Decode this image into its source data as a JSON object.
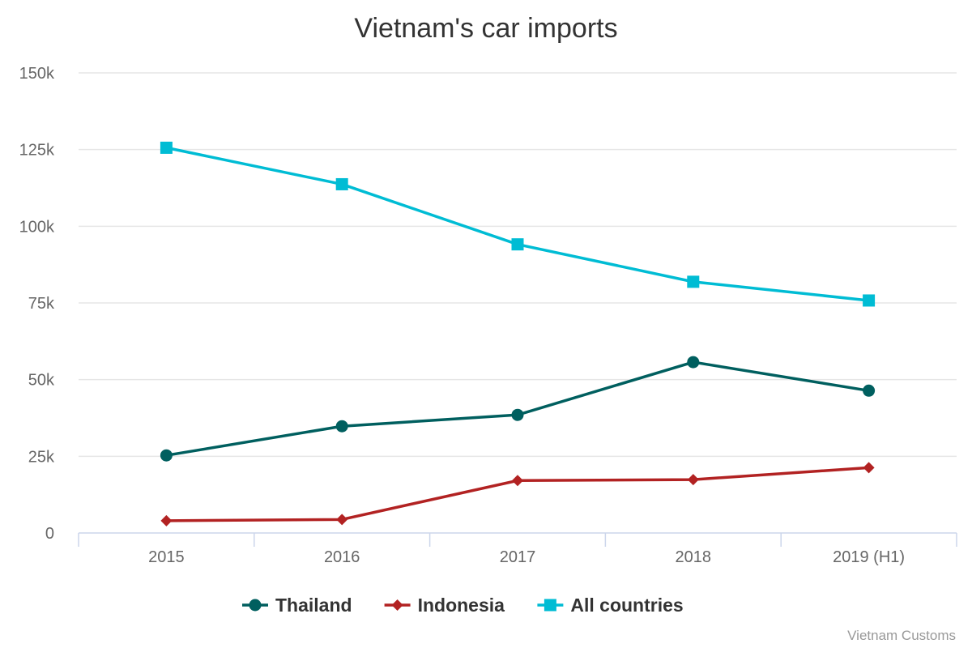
{
  "chart_data": {
    "type": "line",
    "title": "Vietnam's car imports",
    "xlabel": "",
    "ylabel": "",
    "categories": [
      "2015",
      "2016",
      "2017",
      "2018",
      "2019 (H1)"
    ],
    "ylim": [
      0,
      150000
    ],
    "yticks": [
      0,
      25000,
      50000,
      75000,
      100000,
      125000,
      150000
    ],
    "ytick_labels": [
      "0",
      "25k",
      "50k",
      "75k",
      "100k",
      "125k",
      "150k"
    ],
    "grid": true,
    "legend_position": "bottom-center",
    "series": [
      {
        "name": "Thailand",
        "values": [
          25300,
          34800,
          38500,
          55700,
          46400
        ],
        "color": "#005f5f",
        "marker": "circle"
      },
      {
        "name": "Indonesia",
        "values": [
          4000,
          4400,
          17100,
          17400,
          21300
        ],
        "color": "#b22222",
        "marker": "diamond"
      },
      {
        "name": "All countries",
        "values": [
          125600,
          113700,
          94100,
          81900,
          75800
        ],
        "color": "#00bcd4",
        "marker": "square"
      }
    ]
  },
  "credit": "Vietnam Customs"
}
